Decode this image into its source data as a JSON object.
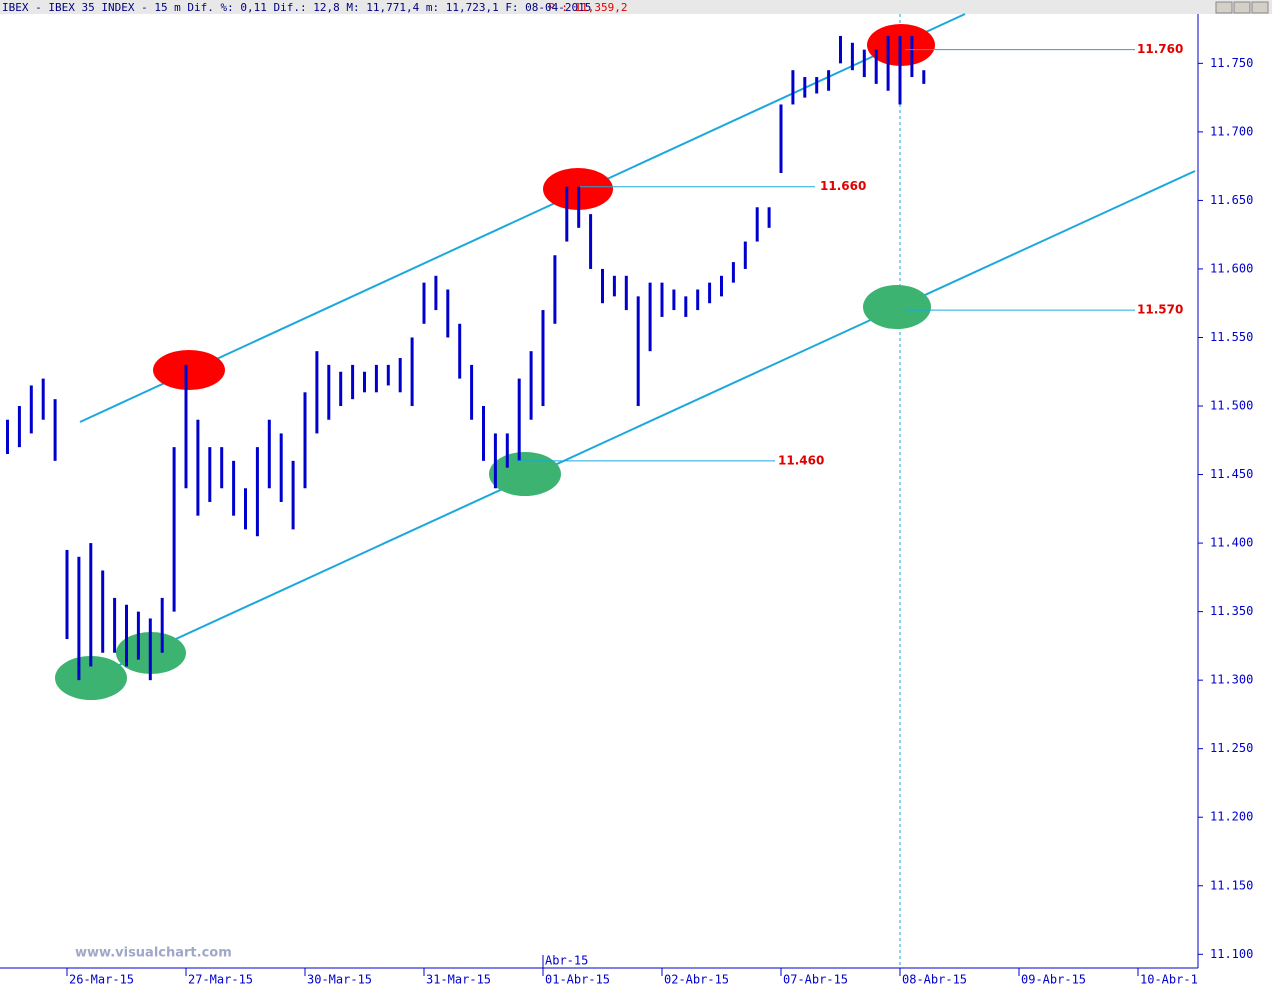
{
  "chart_data": {
    "type": "hilo",
    "title": "IBEX - IBEX 35 INDEX -  15 m Dif. %: 0,11 Dif.: 12,8 M: 11,771,4 m: 11,723,1 F: 08-04-2015",
    "subtitle": "P : 11,359,2",
    "watermark": "www.visualchart.com",
    "month_label": "Abr-15",
    "color": "#0000cc",
    "categories": [
      null,
      null,
      null,
      null,
      null,
      "26-Mar-15",
      null,
      null,
      null,
      null,
      null,
      null,
      null,
      null,
      null,
      "27-Mar-15",
      null,
      null,
      null,
      null,
      null,
      null,
      null,
      null,
      null,
      "30-Mar-15",
      null,
      null,
      null,
      null,
      null,
      null,
      null,
      null,
      null,
      "31-Mar-15",
      null,
      null,
      null,
      null,
      null,
      null,
      null,
      null,
      null,
      "01-Abr-15",
      null,
      null,
      null,
      null,
      null,
      null,
      null,
      null,
      null,
      "02-Abr-15",
      null,
      null,
      null,
      null,
      null,
      null,
      null,
      null,
      null,
      "07-Abr-15",
      null,
      null,
      null,
      null,
      null,
      null,
      null,
      null,
      null,
      "08-Abr-15",
      null,
      null,
      null,
      null,
      null,
      null,
      null,
      null,
      null,
      "09-Abr-15",
      null,
      null,
      null,
      null,
      null,
      null,
      null,
      null,
      null,
      "10-Abr-1",
      null,
      null,
      null,
      null
    ],
    "lows": [
      11465,
      11470,
      11480,
      11490,
      11460,
      11330,
      11300,
      11310,
      11320,
      11320,
      11310,
      11315,
      11300,
      11320,
      11350,
      11440,
      11420,
      11430,
      11440,
      11420,
      11410,
      11405,
      11440,
      11430,
      11410,
      11440,
      11480,
      11490,
      11500,
      11505,
      11510,
      11510,
      11515,
      11510,
      11500,
      11560,
      11570,
      11550,
      11520,
      11490,
      11460,
      11440,
      11455,
      11460,
      11490,
      11500,
      11560,
      11620,
      11630,
      11600,
      11575,
      11580,
      11570,
      11500,
      11540,
      11565,
      11570,
      11565,
      11570,
      11575,
      11580,
      11590,
      11600,
      11620,
      11630,
      11670,
      11720,
      11725,
      11728,
      11730,
      11750,
      11745,
      11740,
      11735,
      11730,
      11720,
      11740,
      11735,
      null,
      null,
      null,
      null,
      null,
      null,
      null,
      null,
      null,
      null,
      null,
      null,
      null,
      null,
      null,
      null,
      null,
      null,
      null,
      null,
      null,
      null
    ],
    "highs": [
      11490,
      11500,
      11515,
      11520,
      11505,
      11395,
      11390,
      11400,
      11380,
      11360,
      11355,
      11350,
      11345,
      11360,
      11470,
      11530,
      11490,
      11470,
      11470,
      11460,
      11440,
      11470,
      11490,
      11480,
      11460,
      11510,
      11540,
      11530,
      11525,
      11530,
      11525,
      11530,
      11530,
      11535,
      11550,
      11590,
      11595,
      11585,
      11560,
      11530,
      11500,
      11480,
      11480,
      11520,
      11540,
      11570,
      11610,
      11660,
      11660,
      11640,
      11600,
      11595,
      11595,
      11580,
      11590,
      11590,
      11585,
      11580,
      11585,
      11590,
      11595,
      11605,
      11620,
      11645,
      11645,
      11720,
      11745,
      11740,
      11740,
      11745,
      11770,
      11765,
      11760,
      11760,
      11770,
      11770,
      11770,
      11745,
      null,
      null,
      null,
      null,
      null,
      null,
      null,
      null,
      null,
      null,
      null,
      null,
      null,
      null,
      null,
      null,
      null,
      null,
      null,
      null,
      null,
      null
    ],
    "ylim": [
      11090,
      11786
    ],
    "yticks": [
      {
        "value": 11100,
        "label": "11.100"
      },
      {
        "value": 11150,
        "label": "11.150"
      },
      {
        "value": 11200,
        "label": "11.200"
      },
      {
        "value": 11250,
        "label": "11.250"
      },
      {
        "value": 11300,
        "label": "11.300"
      },
      {
        "value": 11350,
        "label": "11.350"
      },
      {
        "value": 11400,
        "label": "11.400"
      },
      {
        "value": 11450,
        "label": "11.450"
      },
      {
        "value": 11500,
        "label": "11.500"
      },
      {
        "value": 11550,
        "label": "11.550"
      },
      {
        "value": 11600,
        "label": "11.600"
      },
      {
        "value": 11650,
        "label": "11.650"
      },
      {
        "value": 11700,
        "label": "11.700"
      },
      {
        "value": 11750,
        "label": "11.750"
      }
    ],
    "levels": [
      {
        "value": 11760,
        "label": "11.760"
      },
      {
        "value": 11660,
        "label": "11.660"
      },
      {
        "value": 11570,
        "label": "11.570"
      },
      {
        "value": 11460,
        "label": "11.460"
      }
    ]
  }
}
